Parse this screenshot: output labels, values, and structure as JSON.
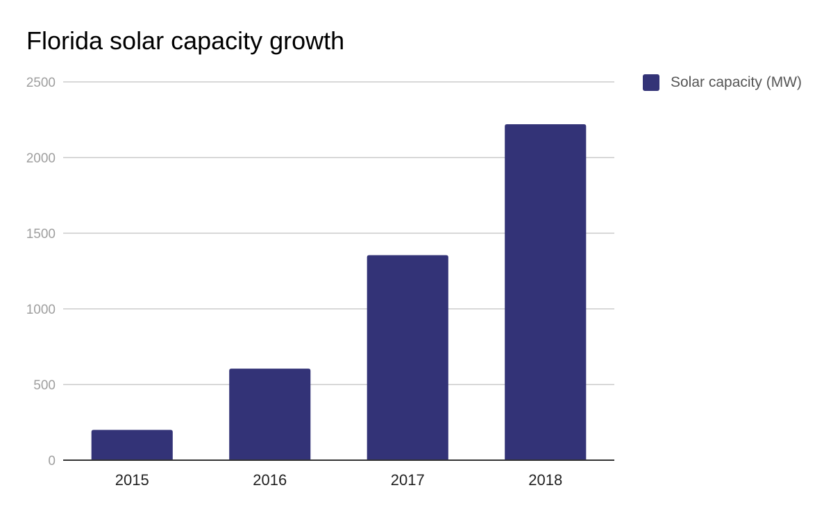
{
  "chart_data": {
    "type": "bar",
    "title": "Florida solar capacity growth",
    "xlabel": "",
    "ylabel": "",
    "categories": [
      "2015",
      "2016",
      "2017",
      "2018"
    ],
    "series": [
      {
        "name": "Solar capacity (MW)",
        "values": [
          200,
          605,
          1355,
          2220
        ],
        "color": "#333377"
      }
    ],
    "ylim": [
      0,
      2500
    ],
    "yticks": [
      0,
      500,
      1000,
      1500,
      2000,
      2500
    ],
    "grid": true,
    "legend_position": "right"
  }
}
